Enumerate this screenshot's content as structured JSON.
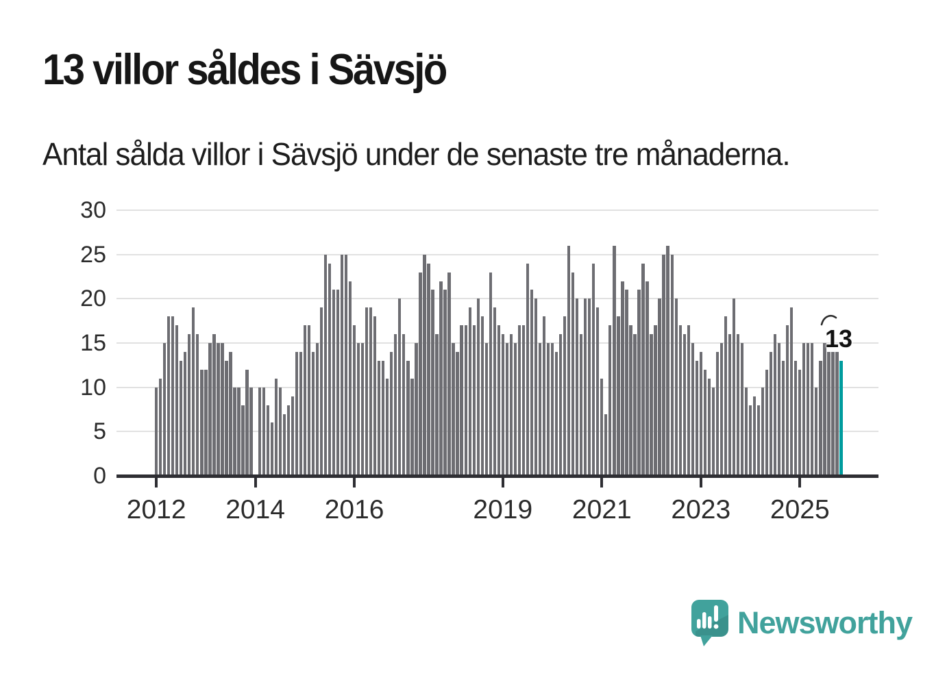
{
  "header": {
    "title": "13 villor såldes i Sävsjö",
    "subtitle": "Antal sålda villor i Sävsjö under de senaste tre månaderna."
  },
  "chart_data": {
    "type": "bar",
    "title": "13 villor såldes i Sävsjö",
    "subtitle": "Antal sålda villor i Sävsjö under de senaste tre månaderna.",
    "x_start": "2012-01",
    "frequency": "monthly",
    "values": [
      10,
      11,
      15,
      18,
      18,
      17,
      13,
      14,
      16,
      19,
      16,
      12,
      12,
      15,
      16,
      15,
      15,
      13,
      14,
      10,
      10,
      8,
      12,
      10,
      0,
      10,
      10,
      8,
      6,
      11,
      10,
      7,
      8,
      9,
      14,
      14,
      17,
      17,
      14,
      15,
      19,
      25,
      24,
      21,
      21,
      25,
      25,
      22,
      17,
      15,
      15,
      19,
      19,
      18,
      13,
      13,
      11,
      14,
      16,
      20,
      16,
      13,
      11,
      15,
      23,
      25,
      24,
      21,
      16,
      22,
      21,
      23,
      15,
      14,
      17,
      17,
      19,
      17,
      20,
      18,
      15,
      23,
      19,
      17,
      16,
      15,
      16,
      15,
      17,
      17,
      24,
      21,
      20,
      15,
      18,
      15,
      15,
      14,
      16,
      18,
      26,
      23,
      20,
      16,
      20,
      20,
      24,
      19,
      11,
      7,
      17,
      26,
      18,
      22,
      21,
      17,
      16,
      21,
      24,
      22,
      16,
      17,
      20,
      25,
      26,
      25,
      20,
      17,
      16,
      17,
      15,
      13,
      14,
      12,
      11,
      10,
      14,
      15,
      18,
      16,
      20,
      16,
      15,
      10,
      8,
      9,
      8,
      10,
      12,
      14,
      16,
      15,
      13,
      17,
      19,
      13,
      12,
      15,
      15,
      15,
      10,
      13,
      15,
      14,
      14,
      14,
      13
    ],
    "highlight_last_value": 13,
    "highlight_label": "13",
    "y_ticks": [
      0,
      5,
      10,
      15,
      20,
      25,
      30
    ],
    "ylim": [
      0,
      30
    ],
    "x_tick_years": [
      2012,
      2014,
      2016,
      2019,
      2021,
      2023,
      2025
    ],
    "grid": true,
    "legend": "none",
    "bar_color": "#6d6d72",
    "highlight_color": "#009c9e"
  },
  "annotation": {
    "label": "13"
  },
  "footer": {
    "brand": "Newsworthy",
    "brand_color": "#41a29c",
    "logo_icon": "newsworthy-speech-bubble-chart-icon"
  }
}
